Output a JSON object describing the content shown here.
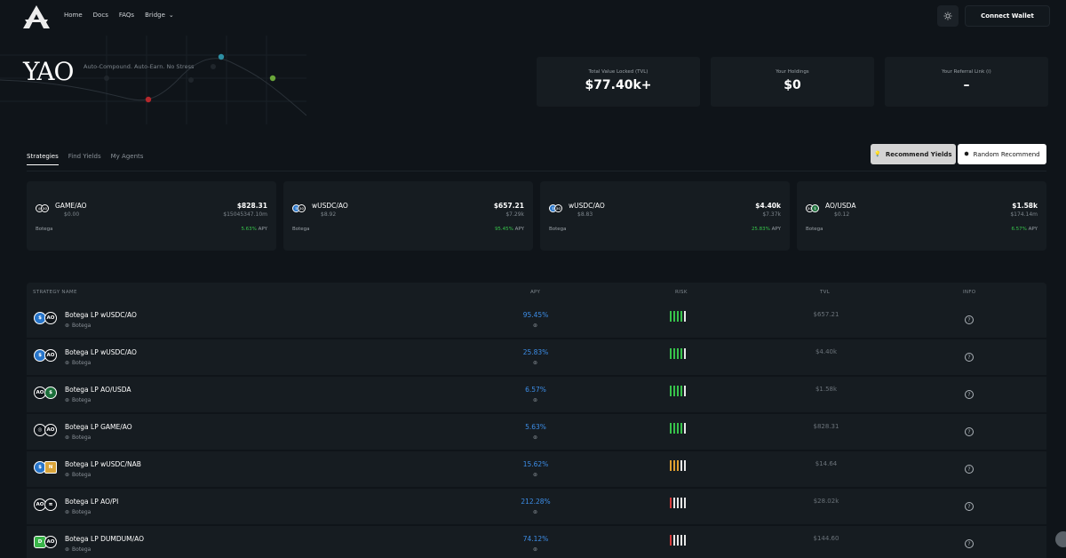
{
  "nav": {
    "links": [
      "Home",
      "Docs",
      "FAQs",
      "Bridge"
    ],
    "connect_label": "Connect Wallet"
  },
  "hero": {
    "brand": "YAO",
    "tagline": "Auto-Compound. Auto-Earn. No Stress"
  },
  "stats": [
    {
      "label": "Total Value Locked (TVL)",
      "value": "$77.40k+"
    },
    {
      "label": "Your Holdings",
      "value": "$0"
    },
    {
      "label": "Your Referral Link (i)",
      "value": "–"
    }
  ],
  "tabs": [
    "Strategies",
    "Find Yields",
    "My Agents"
  ],
  "buttons": {
    "recommend_yields": "Recommend Yields",
    "random_recommend": "Random Recommend"
  },
  "cards": [
    {
      "name": "GAME/AO",
      "sub": "$0.00",
      "value": "$828.31",
      "tvl": "$15045347.10m",
      "source": "Botega",
      "apy": "5.63%",
      "apy_suffix": "APY"
    },
    {
      "name": "wUSDC/AO",
      "sub": "$8.92",
      "value": "$657.21",
      "tvl": "$7.29k",
      "source": "Botega",
      "apy": "95.45%",
      "apy_suffix": "APY"
    },
    {
      "name": "wUSDC/AO",
      "sub": "$8.83",
      "value": "$4.40k",
      "tvl": "$7.37k",
      "source": "Botega",
      "apy": "25.83%",
      "apy_suffix": "APY"
    },
    {
      "name": "AO/USDA",
      "sub": "$0.12",
      "value": "$1.58k",
      "tvl": "$174.14m",
      "source": "Botega",
      "apy": "6.57%",
      "apy_suffix": "APY"
    }
  ],
  "table": {
    "headers": [
      "STRATEGY NAME",
      "APY",
      "RISK",
      "TVL",
      "INFO"
    ],
    "rows": [
      {
        "name": "Botega LP wUSDC/AO",
        "source": "Botega",
        "apy": "95.45%",
        "tvl": "$657.21",
        "risk": "green"
      },
      {
        "name": "Botega LP wUSDC/AO",
        "source": "Botega",
        "apy": "25.83%",
        "tvl": "$4.40k",
        "risk": "green"
      },
      {
        "name": "Botega LP AO/USDA",
        "source": "Botega",
        "apy": "6.57%",
        "tvl": "$1.58k",
        "risk": "green"
      },
      {
        "name": "Botega LP GAME/AO",
        "source": "Botega",
        "apy": "5.63%",
        "tvl": "$828.31",
        "risk": "green"
      },
      {
        "name": "Botega LP wUSDC/NAB",
        "source": "Botega",
        "apy": "15.62%",
        "tvl": "$14.64",
        "risk": "orange"
      },
      {
        "name": "Botega LP AO/PI",
        "source": "Botega",
        "apy": "212.28%",
        "tvl": "$28.02k",
        "risk": "red"
      },
      {
        "name": "Botega LP DUMDUM/AO",
        "source": "Botega",
        "apy": "74.12%",
        "tvl": "$144.60",
        "risk": "red"
      }
    ]
  },
  "colors": {
    "background": "#0f1419",
    "panel": "#161c21",
    "apy_blue": "#3d8ee8",
    "apy_green": "#37c34b",
    "risk_green": "#37c34b",
    "risk_orange": "#e0a030",
    "risk_red": "#d63a3a"
  }
}
